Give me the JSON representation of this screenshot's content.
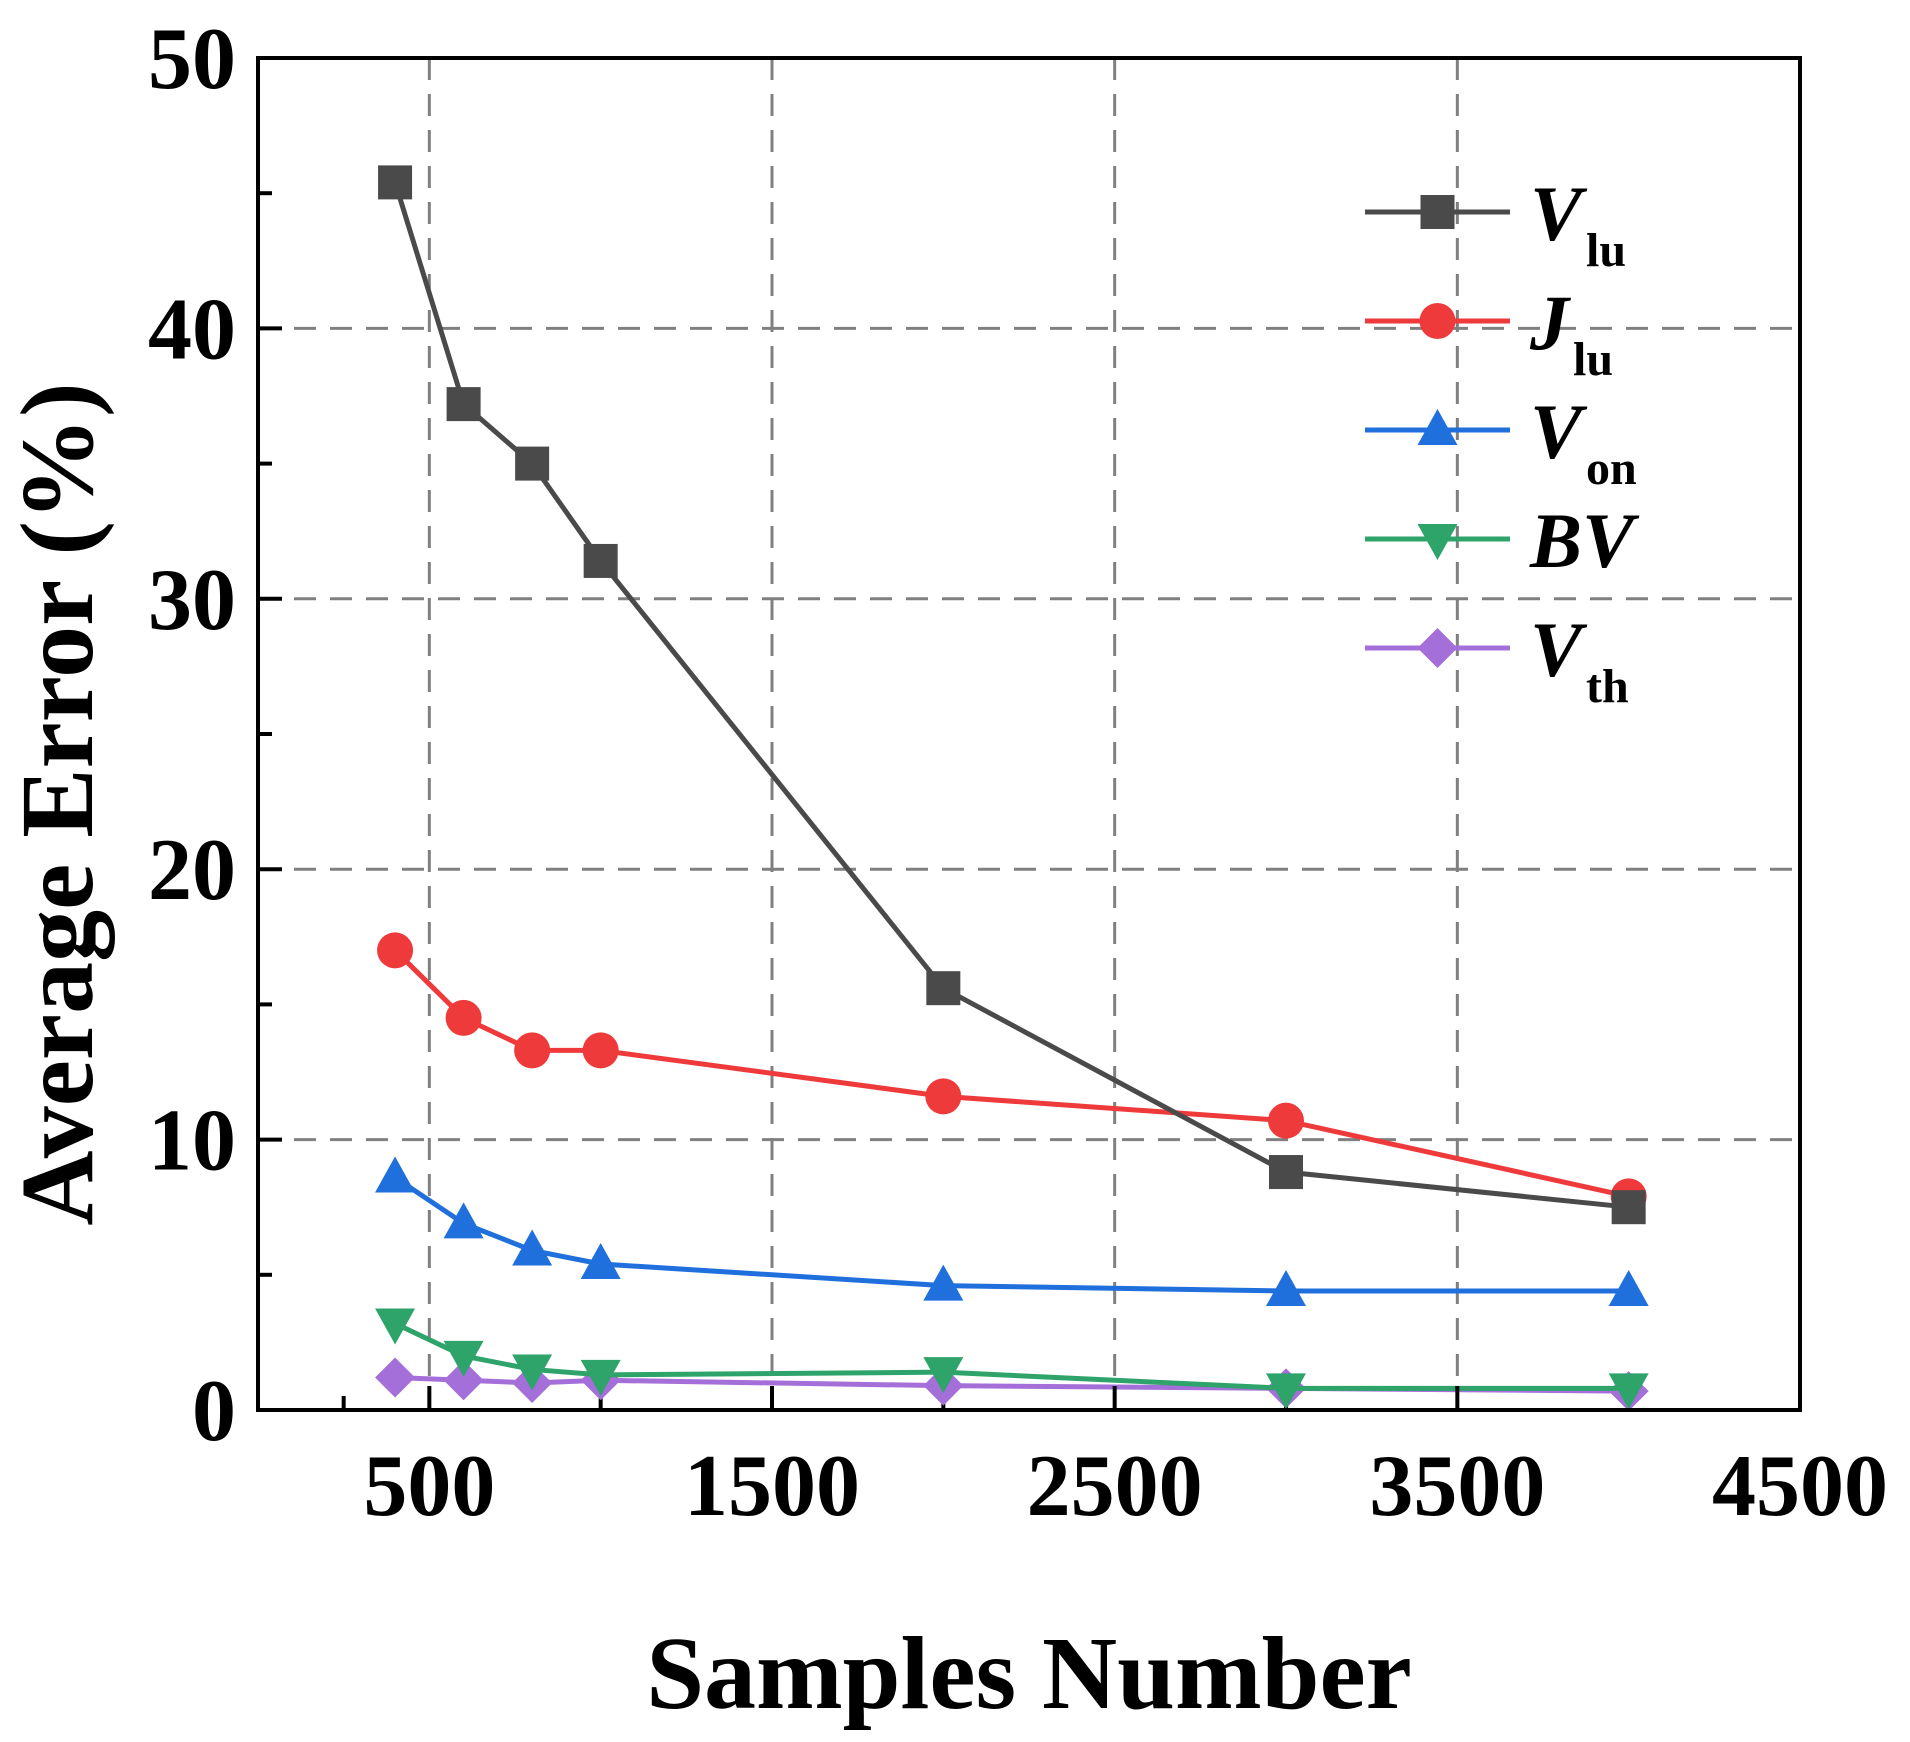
{
  "chart_data": {
    "type": "line",
    "title": "",
    "xlabel": "Samples Number",
    "ylabel": "Average Error (%)",
    "xlim": [
      0,
      4500
    ],
    "ylim": [
      0,
      50
    ],
    "x_ticks": [
      500,
      1500,
      2500,
      3500,
      4500
    ],
    "x_tick_labels": [
      "500",
      "1500",
      "2500",
      "3500",
      "4500"
    ],
    "y_ticks": [
      0,
      10,
      20,
      30,
      40,
      50
    ],
    "y_tick_labels": [
      "0",
      "10",
      "20",
      "30",
      "40",
      "50"
    ],
    "grid": true,
    "legend_position": "top-right",
    "x": [
      400,
      600,
      800,
      1000,
      2000,
      3000,
      4000
    ],
    "series": [
      {
        "name": "V",
        "subscript": "lu",
        "marker": "square",
        "color": "#4a4a4a",
        "values": [
          45.4,
          37.2,
          35.0,
          31.4,
          15.6,
          8.8,
          7.5
        ]
      },
      {
        "name": "J",
        "subscript": "lu",
        "marker": "circle",
        "color": "#ee3a3a",
        "values": [
          17.0,
          14.5,
          13.3,
          13.3,
          11.6,
          10.7,
          7.9
        ]
      },
      {
        "name": "V",
        "subscript": "on",
        "marker": "triangle-up",
        "color": "#1f6fdc",
        "values": [
          8.6,
          6.9,
          5.9,
          5.4,
          4.6,
          4.4,
          4.4
        ]
      },
      {
        "name": "BV",
        "subscript": "",
        "marker": "triangle-down",
        "color": "#2ea36a",
        "values": [
          3.2,
          2.0,
          1.5,
          1.3,
          1.4,
          0.8,
          0.8
        ]
      },
      {
        "name": "V",
        "subscript": "th",
        "marker": "diamond",
        "color": "#a46fd8",
        "values": [
          1.2,
          1.1,
          1.0,
          1.1,
          0.9,
          0.8,
          0.7
        ]
      }
    ]
  }
}
